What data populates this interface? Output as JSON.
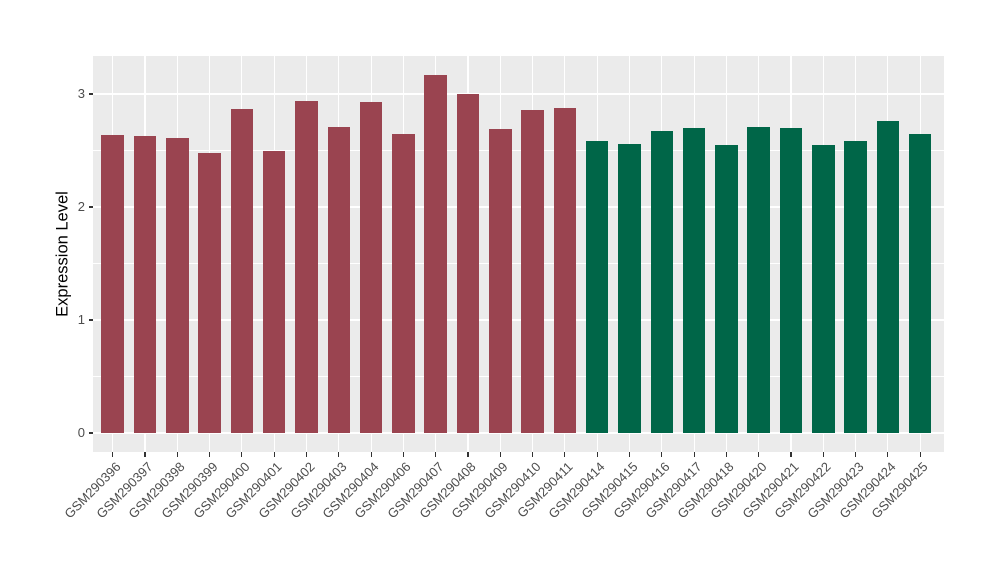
{
  "figure": {
    "background": "#FFFFFF",
    "panel_background": "#EBEBEB",
    "gridline_color": "#FFFFFF",
    "tick_mark_color": "#333333",
    "tick_label_color": "#4D4D4D",
    "axis_title_color": "#000000"
  },
  "chart_data": {
    "type": "bar",
    "title": "",
    "xlabel": "",
    "ylabel": "Expression Level",
    "ylim": [
      -0.16,
      3.33
    ],
    "yticks": [
      0,
      1,
      2,
      3
    ],
    "yticks_minor": [
      0.5,
      1.5,
      2.5
    ],
    "grid": "ggplot-style: white major+minor horizontal gridlines and white vertical gridlines at category centers on gray panel",
    "legend_position": "none",
    "x_tick_rotation_deg": 45,
    "series": [
      {
        "name": "group-maroon",
        "color": "#9A4450",
        "categories": [
          "GSM290396",
          "GSM290397",
          "GSM290398",
          "GSM290399",
          "GSM290400",
          "GSM290401",
          "GSM290402",
          "GSM290403",
          "GSM290404",
          "GSM290406",
          "GSM290407",
          "GSM290408",
          "GSM290409",
          "GSM290410",
          "GSM290411"
        ],
        "values": [
          2.64,
          2.63,
          2.61,
          2.48,
          2.87,
          2.5,
          2.94,
          2.71,
          2.93,
          2.65,
          3.17,
          3.0,
          2.69,
          2.86,
          2.88
        ]
      },
      {
        "name": "group-green",
        "color": "#006648",
        "categories": [
          "GSM290414",
          "GSM290415",
          "GSM290416",
          "GSM290417",
          "GSM290418",
          "GSM290420",
          "GSM290421",
          "GSM290422",
          "GSM290423",
          "GSM290424",
          "GSM290425"
        ],
        "values": [
          2.58,
          2.56,
          2.67,
          2.7,
          2.55,
          2.71,
          2.7,
          2.55,
          2.58,
          2.76,
          2.65
        ]
      }
    ]
  }
}
